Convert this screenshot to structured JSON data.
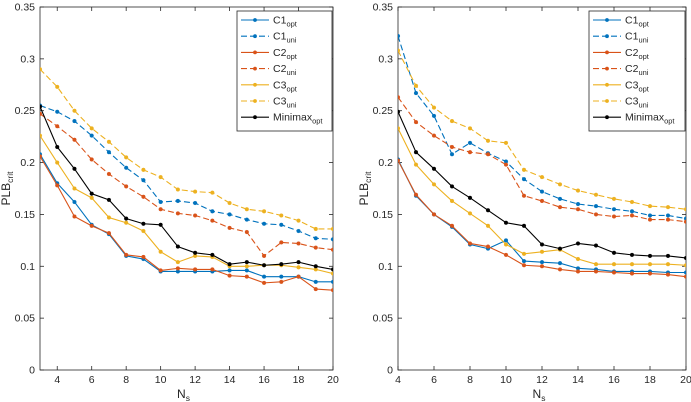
{
  "chart_data": [
    {
      "type": "line",
      "xlabel_main": "N",
      "xlabel_sub": "s",
      "ylabel_main": "PLB",
      "ylabel_sub": "crit",
      "xlim": [
        3,
        20
      ],
      "ylim": [
        0,
        0.35
      ],
      "x_ticks": [
        4,
        6,
        8,
        10,
        12,
        14,
        16,
        18,
        20
      ],
      "y_ticks": [
        0,
        0.05,
        0.1,
        0.15,
        0.2,
        0.25,
        0.3,
        0.35
      ],
      "legend_position": "top-right",
      "grid": false,
      "x": [
        3,
        4,
        5,
        6,
        7,
        8,
        9,
        10,
        11,
        12,
        13,
        14,
        15,
        16,
        17,
        18,
        19,
        20
      ],
      "series": [
        {
          "name": "C1",
          "sub": "opt",
          "color": "#0072BD",
          "dash": false,
          "values": [
            0.208,
            0.18,
            0.162,
            0.14,
            0.131,
            0.11,
            0.107,
            0.095,
            0.095,
            0.095,
            0.095,
            0.096,
            0.096,
            0.09,
            0.09,
            0.09,
            0.085,
            0.085
          ]
        },
        {
          "name": "C1",
          "sub": "uni",
          "color": "#0072BD",
          "dash": true,
          "values": [
            0.255,
            0.249,
            0.24,
            0.226,
            0.21,
            0.195,
            0.183,
            0.162,
            0.163,
            0.161,
            0.153,
            0.15,
            0.145,
            0.141,
            0.14,
            0.134,
            0.127,
            0.126
          ]
        },
        {
          "name": "C2",
          "sub": "opt",
          "color": "#D95319",
          "dash": false,
          "values": [
            0.206,
            0.178,
            0.148,
            0.139,
            0.132,
            0.111,
            0.109,
            0.096,
            0.098,
            0.097,
            0.097,
            0.091,
            0.09,
            0.084,
            0.085,
            0.09,
            0.078,
            0.077
          ]
        },
        {
          "name": "C2",
          "sub": "uni",
          "color": "#D95319",
          "dash": true,
          "values": [
            0.247,
            0.235,
            0.222,
            0.203,
            0.189,
            0.177,
            0.167,
            0.155,
            0.151,
            0.149,
            0.144,
            0.137,
            0.133,
            0.11,
            0.123,
            0.122,
            0.118,
            0.116
          ]
        },
        {
          "name": "C3",
          "sub": "opt",
          "color": "#EDB120",
          "dash": false,
          "values": [
            0.226,
            0.2,
            0.175,
            0.166,
            0.147,
            0.142,
            0.134,
            0.114,
            0.104,
            0.11,
            0.109,
            0.1,
            0.1,
            0.101,
            0.101,
            0.099,
            0.097,
            0.093
          ]
        },
        {
          "name": "C3",
          "sub": "uni",
          "color": "#EDB120",
          "dash": true,
          "values": [
            0.29,
            0.273,
            0.25,
            0.233,
            0.22,
            0.205,
            0.193,
            0.186,
            0.174,
            0.172,
            0.171,
            0.161,
            0.155,
            0.153,
            0.149,
            0.144,
            0.136,
            0.136
          ]
        },
        {
          "name": "Minimax",
          "sub": "opt",
          "color": "#000000",
          "dash": false,
          "values": [
            0.254,
            0.215,
            0.194,
            0.17,
            0.164,
            0.146,
            0.141,
            0.14,
            0.119,
            0.113,
            0.111,
            0.102,
            0.104,
            0.101,
            0.102,
            0.104,
            0.1,
            0.097
          ]
        }
      ]
    },
    {
      "type": "line",
      "xlabel_main": "N",
      "xlabel_sub": "s",
      "ylabel_main": "PLB",
      "ylabel_sub": "crit",
      "xlim": [
        4,
        20
      ],
      "ylim": [
        0,
        0.35
      ],
      "x_ticks": [
        4,
        6,
        8,
        10,
        12,
        14,
        16,
        18,
        20
      ],
      "y_ticks": [
        0,
        0.05,
        0.1,
        0.15,
        0.2,
        0.25,
        0.3,
        0.35
      ],
      "legend_position": "top-right",
      "grid": false,
      "x": [
        4,
        5,
        6,
        7,
        8,
        9,
        10,
        11,
        12,
        13,
        14,
        15,
        16,
        17,
        18,
        19,
        20
      ],
      "series": [
        {
          "name": "C1",
          "sub": "opt",
          "color": "#0072BD",
          "dash": false,
          "values": [
            0.203,
            0.168,
            0.15,
            0.138,
            0.121,
            0.117,
            0.125,
            0.105,
            0.104,
            0.103,
            0.098,
            0.097,
            0.095,
            0.095,
            0.095,
            0.094,
            0.094
          ]
        },
        {
          "name": "C1",
          "sub": "uni",
          "color": "#0072BD",
          "dash": true,
          "values": [
            0.322,
            0.267,
            0.245,
            0.208,
            0.219,
            0.209,
            0.201,
            0.184,
            0.172,
            0.165,
            0.16,
            0.158,
            0.155,
            0.153,
            0.149,
            0.149,
            0.146
          ]
        },
        {
          "name": "C2",
          "sub": "opt",
          "color": "#D95319",
          "dash": false,
          "values": [
            0.202,
            0.169,
            0.15,
            0.139,
            0.122,
            0.119,
            0.111,
            0.101,
            0.1,
            0.097,
            0.095,
            0.095,
            0.094,
            0.093,
            0.093,
            0.092,
            0.09
          ]
        },
        {
          "name": "C2",
          "sub": "uni",
          "color": "#D95319",
          "dash": true,
          "values": [
            0.263,
            0.239,
            0.226,
            0.215,
            0.21,
            0.208,
            0.198,
            0.168,
            0.163,
            0.157,
            0.155,
            0.15,
            0.148,
            0.149,
            0.145,
            0.145,
            0.143
          ]
        },
        {
          "name": "C3",
          "sub": "opt",
          "color": "#EDB120",
          "dash": false,
          "values": [
            0.233,
            0.198,
            0.179,
            0.163,
            0.151,
            0.139,
            0.121,
            0.112,
            0.114,
            0.116,
            0.107,
            0.102,
            0.102,
            0.102,
            0.102,
            0.102,
            0.101
          ]
        },
        {
          "name": "C3",
          "sub": "uni",
          "color": "#EDB120",
          "dash": true,
          "values": [
            0.308,
            0.274,
            0.253,
            0.24,
            0.233,
            0.221,
            0.219,
            0.193,
            0.186,
            0.179,
            0.173,
            0.169,
            0.165,
            0.162,
            0.158,
            0.157,
            0.155
          ]
        },
        {
          "name": "Minimax",
          "sub": "opt",
          "color": "#000000",
          "dash": false,
          "values": [
            0.249,
            0.21,
            0.194,
            0.177,
            0.166,
            0.154,
            0.142,
            0.139,
            0.121,
            0.117,
            0.122,
            0.12,
            0.113,
            0.111,
            0.11,
            0.11,
            0.108
          ]
        }
      ]
    }
  ]
}
